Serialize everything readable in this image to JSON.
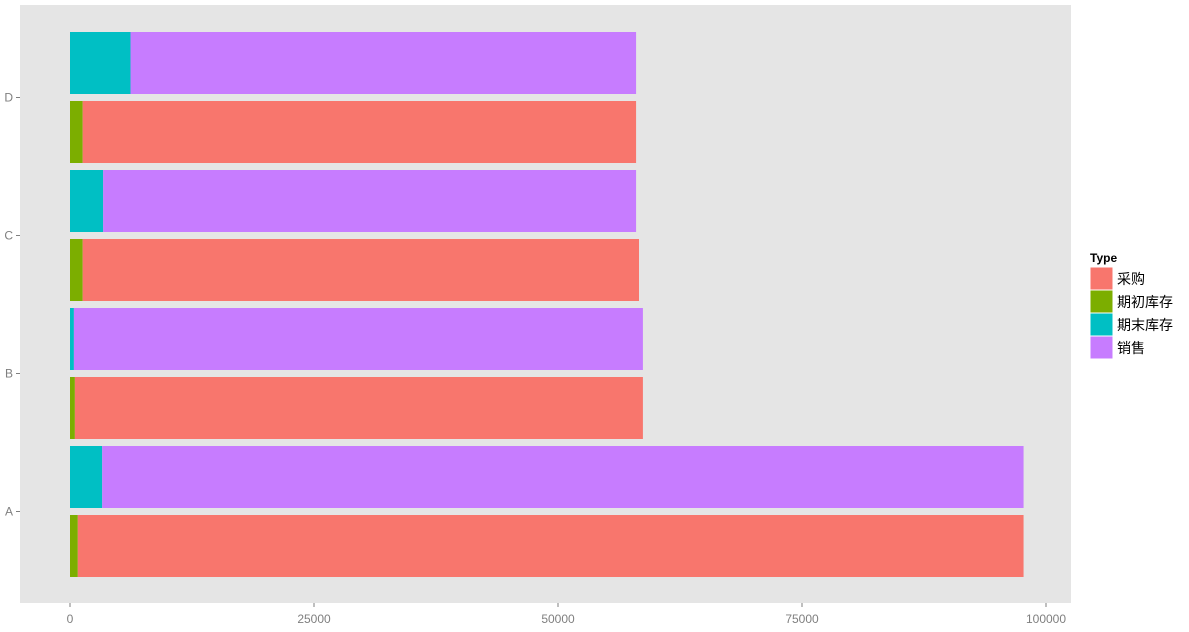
{
  "chart_data": {
    "type": "bar",
    "orientation": "horizontal",
    "categories": [
      "A",
      "B",
      "C",
      "D"
    ],
    "xlim": [
      0,
      100000
    ],
    "x_ticks": [
      0,
      25000,
      50000,
      75000,
      100000
    ],
    "x_tick_labels": [
      "0",
      "25000",
      "50000",
      "75000",
      "100000"
    ],
    "grid": false,
    "legend_position": "right",
    "legend_title": "Type",
    "series": [
      {
        "name": "采购",
        "color": "#F8766D"
      },
      {
        "name": "期初库存",
        "color": "#7CAE00"
      },
      {
        "name": "期末库存",
        "color": "#00BFC4"
      },
      {
        "name": "销售",
        "color": "#C77CFF"
      }
    ],
    "bars": [
      {
        "category": "A",
        "segments": [
          {
            "series": "期初库存",
            "value": 800
          },
          {
            "series": "采购",
            "value": 96900
          }
        ]
      },
      {
        "category": "A",
        "segments": [
          {
            "series": "期末库存",
            "value": 3300
          },
          {
            "series": "销售",
            "value": 94400
          }
        ]
      },
      {
        "category": "B",
        "segments": [
          {
            "series": "期初库存",
            "value": 500
          },
          {
            "series": "采购",
            "value": 58200
          }
        ]
      },
      {
        "category": "B",
        "segments": [
          {
            "series": "期末库存",
            "value": 400
          },
          {
            "series": "销售",
            "value": 58300
          }
        ]
      },
      {
        "category": "C",
        "segments": [
          {
            "series": "期初库存",
            "value": 1300
          },
          {
            "series": "采购",
            "value": 57000
          }
        ]
      },
      {
        "category": "C",
        "segments": [
          {
            "series": "期末库存",
            "value": 3400
          },
          {
            "series": "销售",
            "value": 54600
          }
        ]
      },
      {
        "category": "D",
        "segments": [
          {
            "series": "期初库存",
            "value": 1300
          },
          {
            "series": "采购",
            "value": 56700
          }
        ]
      },
      {
        "category": "D",
        "segments": [
          {
            "series": "期末库存",
            "value": 6200
          },
          {
            "series": "销售",
            "value": 51800
          }
        ]
      }
    ]
  }
}
